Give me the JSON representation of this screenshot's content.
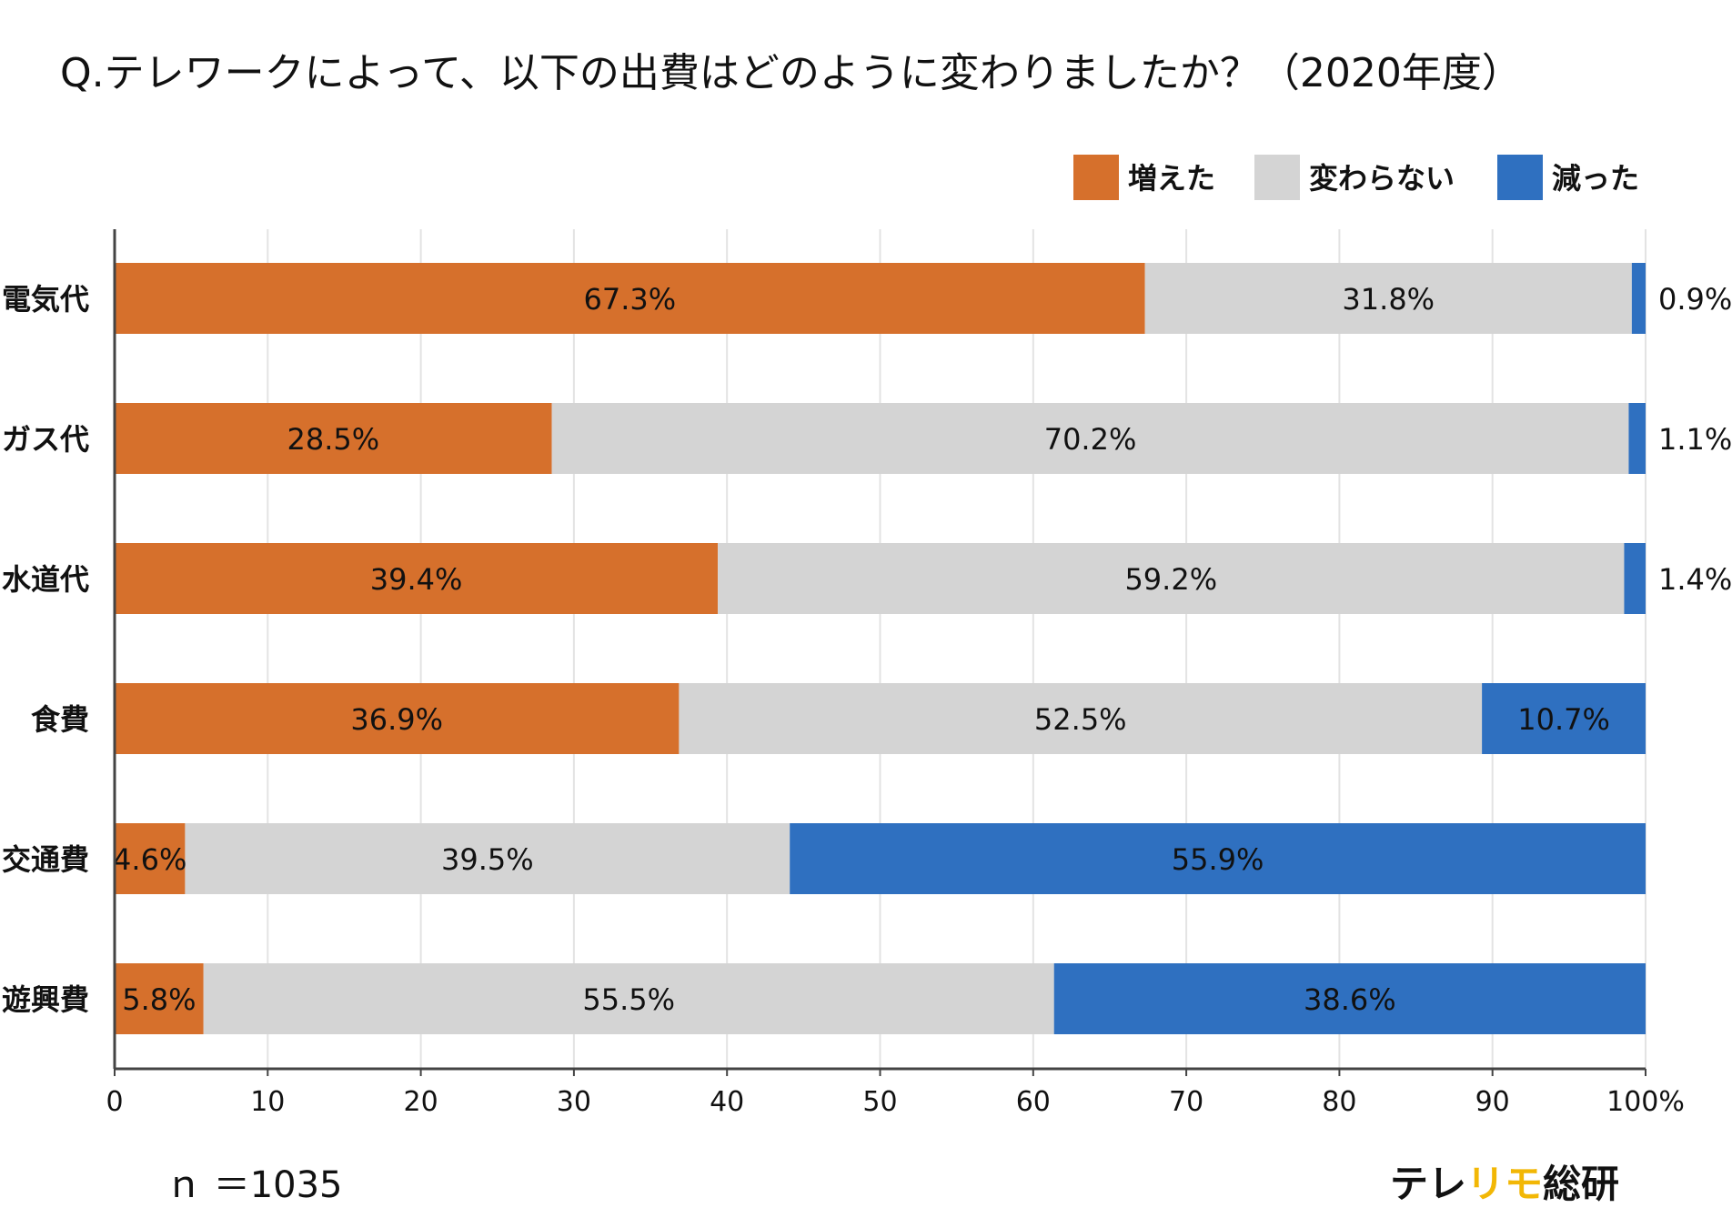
{
  "title": "Q.テレワークによって、以下の出費はどのように変わりましたか？（2020年度）",
  "sample_size": "ｎ ＝1035",
  "brand": {
    "part1": "テレ",
    "part2": "リモ",
    "part3": "総研"
  },
  "colors": {
    "increased": "#d6702c",
    "unchanged": "#d4d4d4",
    "decreased": "#2f70c0",
    "grid": "#e3e3e3",
    "axis": "#444444",
    "brand_accent": "#f2b705"
  },
  "chart_data": {
    "type": "bar",
    "orientation": "horizontal",
    "stacked": true,
    "title": "Q.テレワークによって、以下の出費はどのように変わりましたか？（2020年度）",
    "categories": [
      "電気代",
      "ガス代",
      "水道代",
      "食費",
      "交通費",
      "遊興費"
    ],
    "series": [
      {
        "name": "増えた",
        "color": "#d6702c",
        "values": [
          67.3,
          28.5,
          39.4,
          36.9,
          4.6,
          5.8
        ],
        "labels": [
          "67.3%",
          "28.5%",
          "39.4%",
          "36.9%",
          "4.6%",
          "5.8%"
        ]
      },
      {
        "name": "変わらない",
        "color": "#d4d4d4",
        "values": [
          31.8,
          70.2,
          59.2,
          52.5,
          39.5,
          55.5
        ],
        "labels": [
          "31.8%",
          "70.2%",
          "59.2%",
          "52.5%",
          "39.5%",
          "55.5%"
        ]
      },
      {
        "name": "減った",
        "color": "#2f70c0",
        "values": [
          0.9,
          1.1,
          1.4,
          10.7,
          55.9,
          38.6
        ],
        "labels": [
          "0.9%",
          "1.1%",
          "1.4%",
          "10.7%",
          "55.9%",
          "38.6%"
        ]
      }
    ],
    "x_ticks": [
      "0",
      "10",
      "20",
      "30",
      "40",
      "50",
      "60",
      "70",
      "80",
      "90",
      "100%"
    ],
    "xlim": [
      0,
      100
    ],
    "grid": true,
    "legend_position": "top-right"
  }
}
